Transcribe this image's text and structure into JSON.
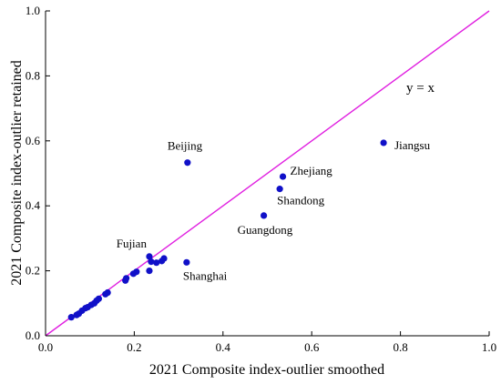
{
  "chart_data": {
    "type": "scatter",
    "xlabel": "2021 Composite index-outlier smoothed",
    "ylabel": "2021 Composite index-outlier retained",
    "xlim": [
      0.0,
      1.0
    ],
    "ylim": [
      0.0,
      1.0
    ],
    "x_ticks": [
      0.0,
      0.2,
      0.4,
      0.6,
      0.8,
      1.0
    ],
    "y_ticks": [
      0.0,
      0.2,
      0.4,
      0.6,
      0.8,
      1.0
    ],
    "x_tick_labels": [
      "0.0",
      "0.2",
      "0.4",
      "0.6",
      "0.8",
      "1.0"
    ],
    "y_tick_labels": [
      "0.0",
      "0.2",
      "0.4",
      "0.6",
      "0.8",
      "1.0"
    ],
    "grid": false,
    "reference_line": {
      "label": "y = x",
      "slope": 1,
      "intercept": 0,
      "color": "#e020e0"
    },
    "point_color": "#1010c8",
    "points": [
      {
        "x": 0.762,
        "y": 0.594,
        "label": "Jiangsu"
      },
      {
        "x": 0.32,
        "y": 0.533,
        "label": "Beijing"
      },
      {
        "x": 0.535,
        "y": 0.49,
        "label": "Zhejiang"
      },
      {
        "x": 0.528,
        "y": 0.452,
        "label": "Shandong"
      },
      {
        "x": 0.492,
        "y": 0.37,
        "label": "Guangdong"
      },
      {
        "x": 0.318,
        "y": 0.226,
        "label": "Shanghai"
      },
      {
        "x": 0.234,
        "y": 0.244,
        "label": "Fujian"
      },
      {
        "x": 0.267,
        "y": 0.238
      },
      {
        "x": 0.262,
        "y": 0.23
      },
      {
        "x": 0.25,
        "y": 0.225
      },
      {
        "x": 0.238,
        "y": 0.228
      },
      {
        "x": 0.234,
        "y": 0.2
      },
      {
        "x": 0.205,
        "y": 0.197
      },
      {
        "x": 0.198,
        "y": 0.191
      },
      {
        "x": 0.182,
        "y": 0.177
      },
      {
        "x": 0.18,
        "y": 0.17
      },
      {
        "x": 0.14,
        "y": 0.133
      },
      {
        "x": 0.135,
        "y": 0.128
      },
      {
        "x": 0.12,
        "y": 0.114
      },
      {
        "x": 0.115,
        "y": 0.108
      },
      {
        "x": 0.11,
        "y": 0.1
      },
      {
        "x": 0.103,
        "y": 0.095
      },
      {
        "x": 0.095,
        "y": 0.088
      },
      {
        "x": 0.09,
        "y": 0.085
      },
      {
        "x": 0.082,
        "y": 0.077
      },
      {
        "x": 0.075,
        "y": 0.068
      },
      {
        "x": 0.07,
        "y": 0.064
      },
      {
        "x": 0.058,
        "y": 0.057
      }
    ]
  }
}
